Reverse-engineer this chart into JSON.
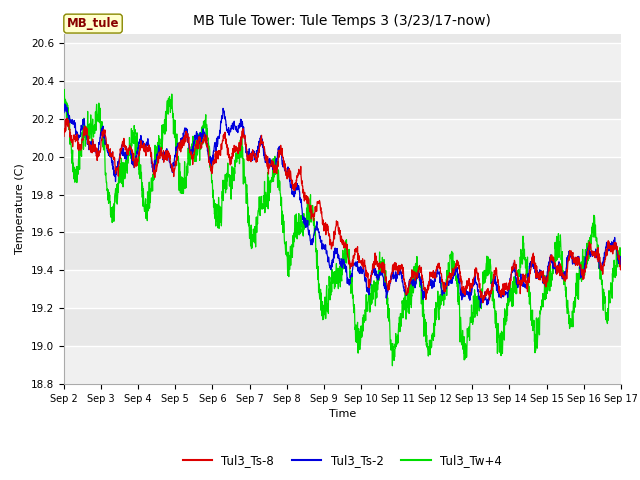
{
  "title": "MB Tule Tower: Tule Temps 3 (3/23/17-now)",
  "xlabel": "Time",
  "ylabel": "Temperature (C)",
  "ylim": [
    18.8,
    20.65
  ],
  "yticks": [
    18.8,
    19.0,
    19.2,
    19.4,
    19.6,
    19.8,
    20.0,
    20.2,
    20.4,
    20.6
  ],
  "xlim": [
    0,
    15
  ],
  "xtick_labels": [
    "Sep 2",
    "Sep 3",
    "Sep 4",
    "Sep 5",
    "Sep 6",
    "Sep 7",
    "Sep 8",
    "Sep 9",
    "Sep 10",
    "Sep 11",
    "Sep 12",
    "Sep 13",
    "Sep 14",
    "Sep 15",
    "Sep 16",
    "Sep 17"
  ],
  "colors": {
    "Tul3_Ts-8": "#dd0000",
    "Tul3_Ts-2": "#0000dd",
    "Tul3_Tw+4": "#00dd00"
  },
  "fig_bg": "#ffffff",
  "axes_bg": "#e8e8e8",
  "band_bg": "#d8d8d8",
  "legend_label": "MB_tule",
  "legend_box_facecolor": "#ffffcc",
  "legend_box_edgecolor": "#888800",
  "legend_text_color": "#880000",
  "title_fontsize": 10,
  "label_fontsize": 8,
  "tick_fontsize": 7.5
}
